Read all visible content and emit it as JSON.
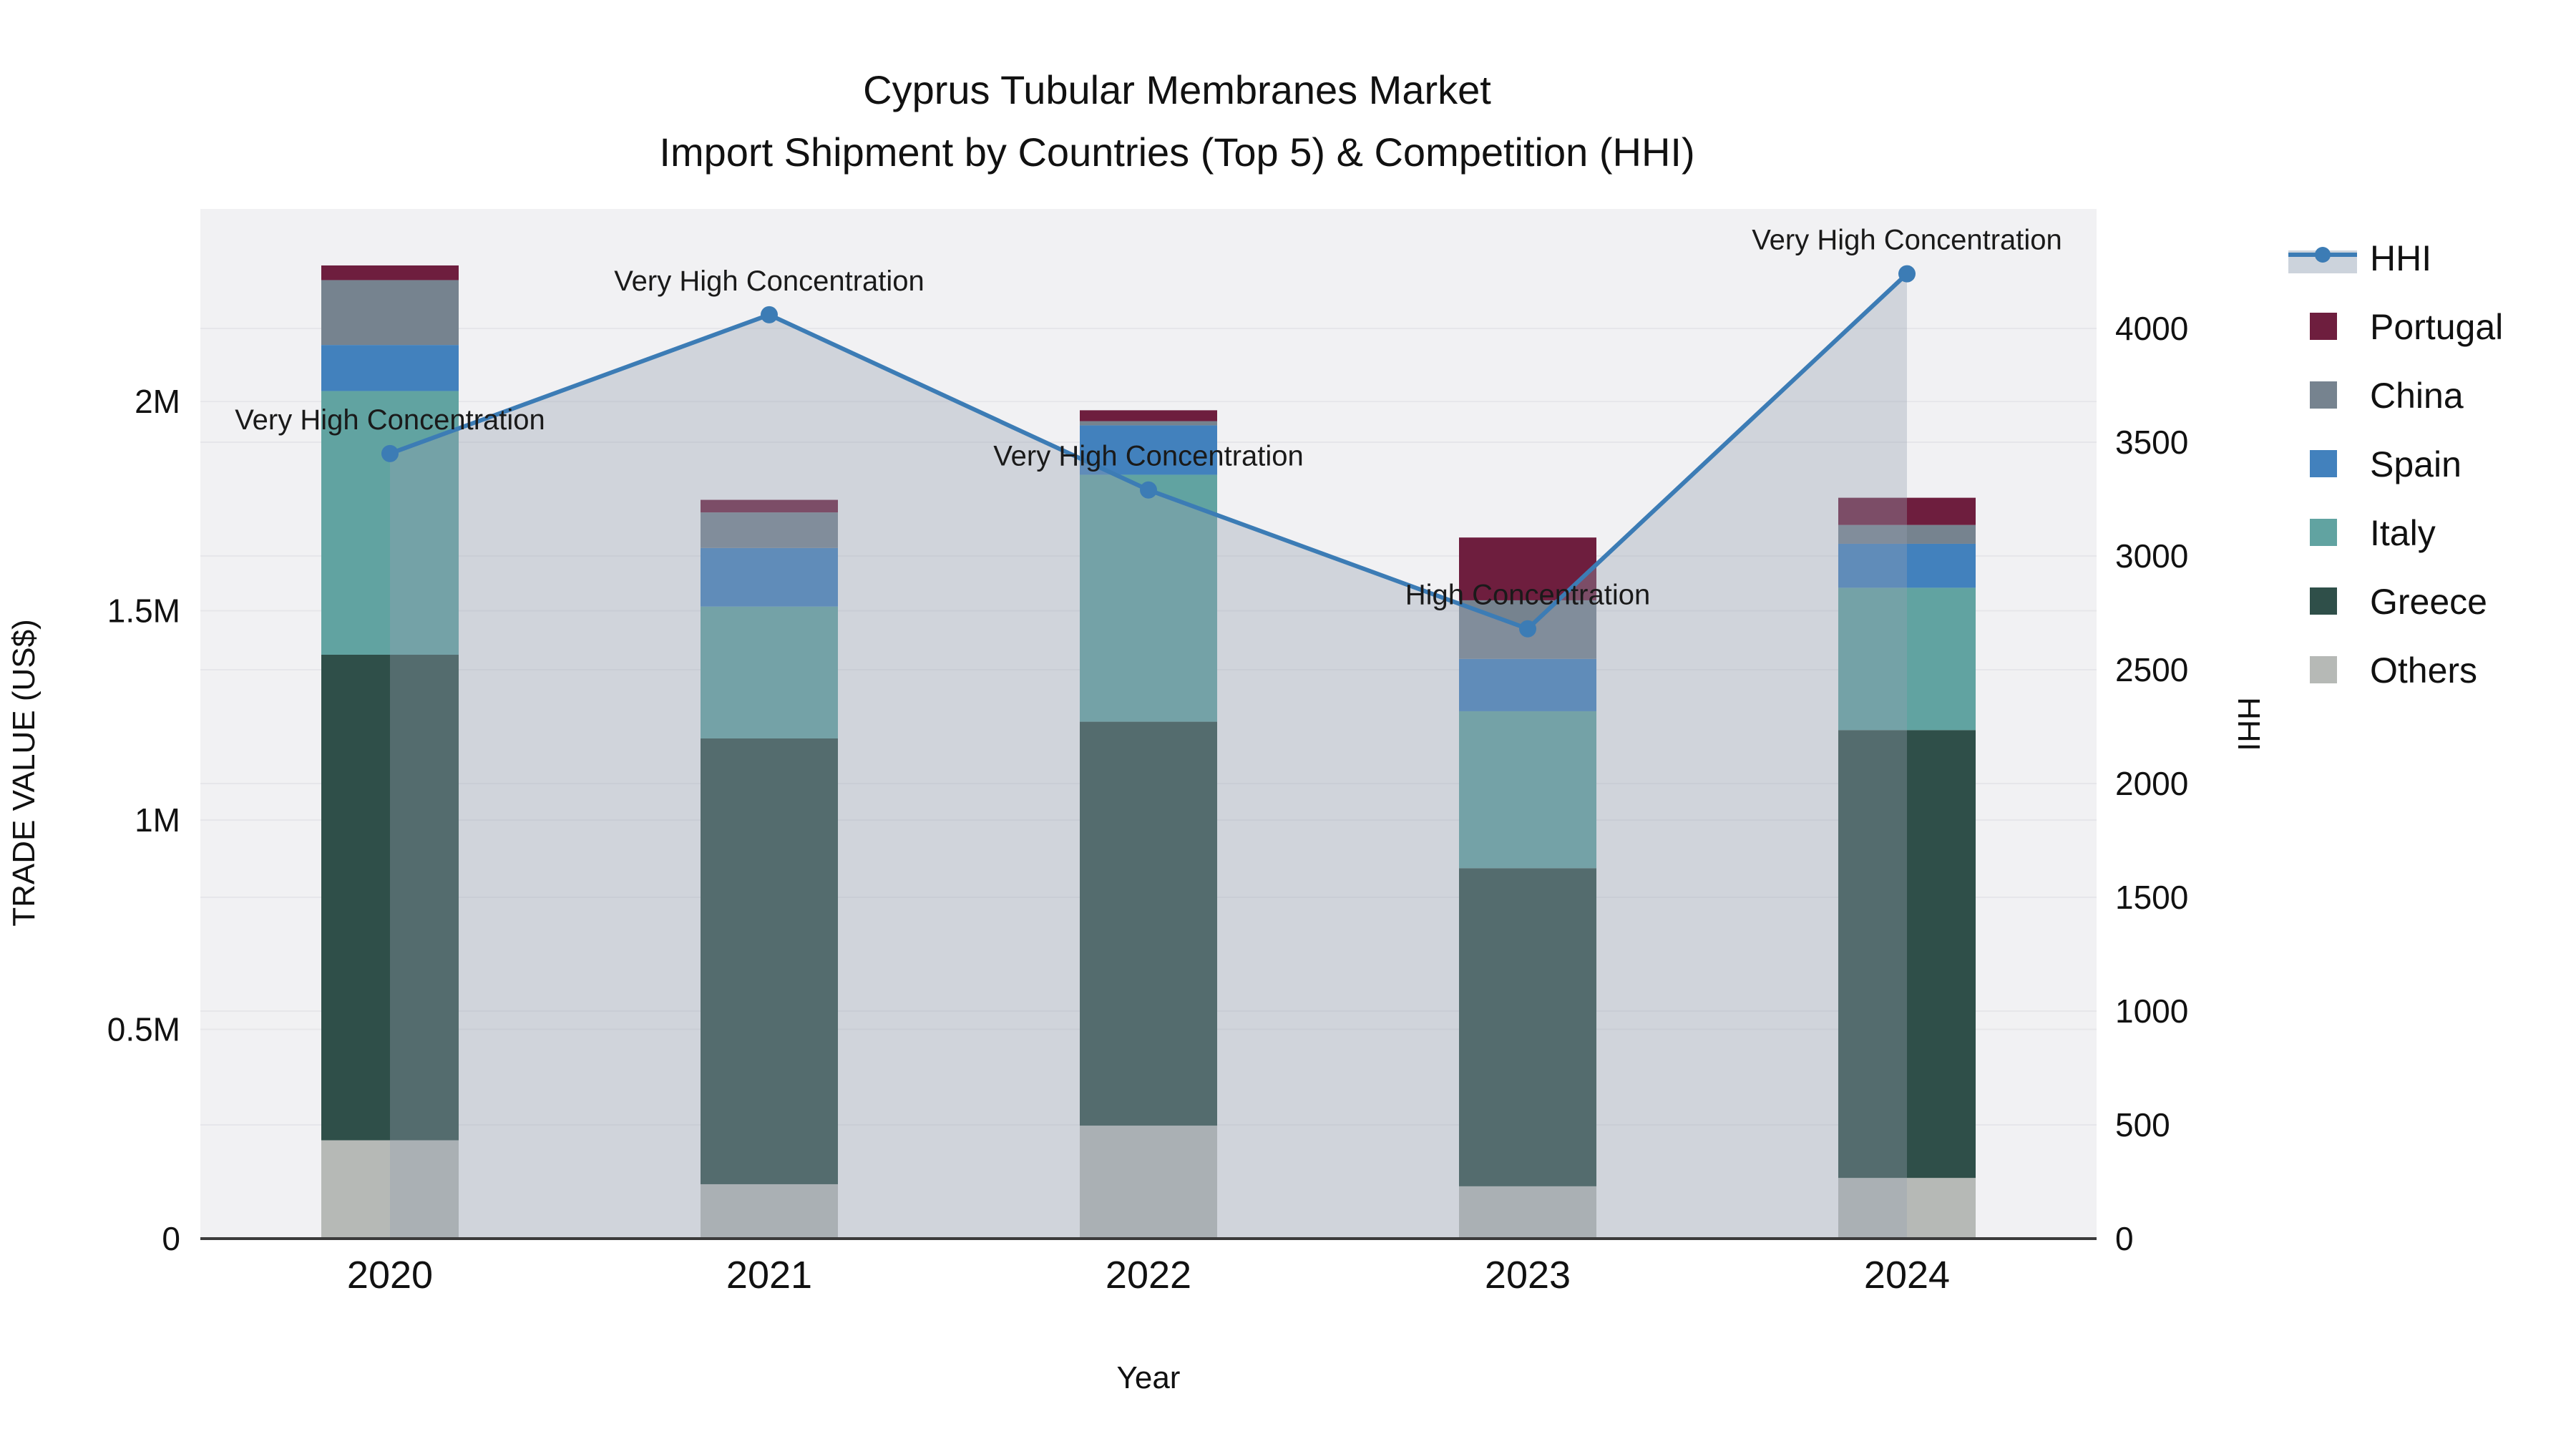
{
  "title": {
    "line1": "Cyprus Tubular Membranes Market",
    "line2": "Import Shipment by Countries (Top 5) & Competition (HHI)"
  },
  "axes": {
    "x": {
      "title": "Year",
      "categories": [
        "2020",
        "2021",
        "2022",
        "2023",
        "2024"
      ]
    },
    "y_left": {
      "title": "TRADE VALUE (US$)",
      "ticks": [
        {
          "label": "0",
          "value": 0
        },
        {
          "label": "0.5M",
          "value": 500000
        },
        {
          "label": "1M",
          "value": 1000000
        },
        {
          "label": "1.5M",
          "value": 1500000
        },
        {
          "label": "2M",
          "value": 2000000
        }
      ],
      "max": 2460000
    },
    "y_right": {
      "title": "HHI",
      "ticks": [
        {
          "label": "0",
          "value": 0
        },
        {
          "label": "500",
          "value": 500
        },
        {
          "label": "1000",
          "value": 1000
        },
        {
          "label": "1500",
          "value": 1500
        },
        {
          "label": "2000",
          "value": 2000
        },
        {
          "label": "2500",
          "value": 2500
        },
        {
          "label": "3000",
          "value": 3000
        },
        {
          "label": "3500",
          "value": 3500
        },
        {
          "label": "4000",
          "value": 4000
        }
      ],
      "max": 4525
    }
  },
  "legend": {
    "items": [
      {
        "label": "HHI",
        "type": "line",
        "color": "#3c7cb5"
      },
      {
        "label": "Portugal",
        "type": "swatch",
        "color": "#6e1e3e"
      },
      {
        "label": "China",
        "type": "swatch",
        "color": "#76838f"
      },
      {
        "label": "Spain",
        "type": "swatch",
        "color": "#4281bd"
      },
      {
        "label": "Italy",
        "type": "swatch",
        "color": "#61a3a1"
      },
      {
        "label": "Greece",
        "type": "swatch",
        "color": "#2f4f49"
      },
      {
        "label": "Others",
        "type": "swatch",
        "color": "#b6b9b6"
      }
    ]
  },
  "chart_data": {
    "type": "bar+line",
    "title": "Cyprus Tubular Membranes Market — Import Shipment by Countries (Top 5) & Competition (HHI)",
    "categories": [
      "2020",
      "2021",
      "2022",
      "2023",
      "2024"
    ],
    "stack_order": "bottom_to_top",
    "series": [
      {
        "name": "Others",
        "color": "#b6b9b6",
        "values": [
          235000,
          130000,
          270000,
          125000,
          145000
        ]
      },
      {
        "name": "Greece",
        "color": "#2f4f49",
        "values": [
          1160000,
          1065000,
          965000,
          760000,
          1070000
        ]
      },
      {
        "name": "Italy",
        "color": "#61a3a1",
        "values": [
          630000,
          315000,
          590000,
          375000,
          340000
        ]
      },
      {
        "name": "Spain",
        "color": "#4281bd",
        "values": [
          110000,
          140000,
          118000,
          125000,
          105000
        ]
      },
      {
        "name": "China",
        "color": "#76838f",
        "values": [
          155000,
          85000,
          10000,
          140000,
          45000
        ]
      },
      {
        "name": "Portugal",
        "color": "#6e1e3e",
        "values": [
          35000,
          30000,
          26000,
          150000,
          65000
        ]
      }
    ],
    "bar_totals": [
      2325000,
      1765000,
      1979000,
      1675000,
      1770000
    ],
    "line_series": {
      "name": "HHI",
      "color": "#3c7cb5",
      "area_fill_color": "rgba(150,160,178,0.36)",
      "values": [
        3450,
        4060,
        3290,
        2680,
        4240
      ]
    },
    "annotations": [
      {
        "x": "2020",
        "text": "Very High Concentration"
      },
      {
        "x": "2021",
        "text": "Very High Concentration"
      },
      {
        "x": "2022",
        "text": "Very High Concentration"
      },
      {
        "x": "2023",
        "text": "High Concentration"
      },
      {
        "x": "2024",
        "text": "Very High Concentration"
      }
    ],
    "xlabel": "Year",
    "ylabel_left": "TRADE VALUE (US$)",
    "ylabel_right": "HHI",
    "ylim_left": [
      0,
      2460000
    ],
    "ylim_right": [
      0,
      4525
    ],
    "grid": true,
    "legend_position": "right"
  },
  "colors": {
    "page_bg": "#ffffff",
    "plot_bg": "#f1f1f3",
    "grid": "#e6e6ea",
    "axis_line": "#3b3b3b",
    "text": "#111111",
    "hhi_line": "#3c7cb5",
    "hhi_area": "rgba(150,160,178,0.36)",
    "legend_band": "#ccd3dc"
  }
}
